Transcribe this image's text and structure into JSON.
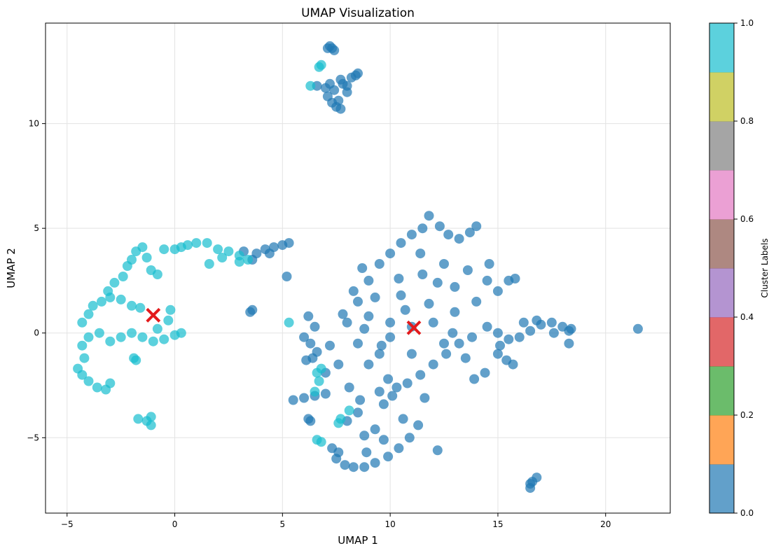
{
  "chart_data": {
    "type": "scatter",
    "title": "UMAP Visualization",
    "xlabel": "UMAP 1",
    "ylabel": "UMAP 2",
    "xlim": [
      -6,
      23
    ],
    "ylim": [
      -8.6,
      14.8
    ],
    "x_ticks": [
      -5,
      0,
      5,
      10,
      15,
      20
    ],
    "y_ticks": [
      -5,
      0,
      5,
      10
    ],
    "x_tick_labels": [
      "−5",
      "0",
      "5",
      "10",
      "15",
      "20"
    ],
    "y_tick_labels": [
      "−5",
      "0",
      "5",
      "10"
    ],
    "grid": true,
    "colorbar": {
      "label": "Cluster Labels",
      "range": [
        0,
        1
      ],
      "ticks": [
        0.0,
        0.2,
        0.4,
        0.6,
        0.8,
        1.0
      ],
      "tick_labels": [
        "0.0",
        "0.2",
        "0.4",
        "0.6",
        "0.8",
        "1.0"
      ],
      "colors": [
        "#1f77b4",
        "#ff7f0e",
        "#2ca02c",
        "#d62728",
        "#9467bd",
        "#8c564b",
        "#e377c2",
        "#7f7f7f",
        "#bcbd22",
        "#17becf"
      ]
    },
    "series": [
      {
        "cluster_label": 0,
        "color": "#1f77b4",
        "points": [
          [
            7.2,
            13.7
          ],
          [
            7.3,
            13.6
          ],
          [
            7.4,
            13.5
          ],
          [
            7.1,
            13.6
          ],
          [
            6.6,
            11.8
          ],
          [
            7.0,
            11.7
          ],
          [
            7.4,
            11.6
          ],
          [
            7.8,
            11.9
          ],
          [
            8.2,
            12.2
          ],
          [
            8.5,
            12.4
          ],
          [
            7.6,
            11.1
          ],
          [
            7.3,
            11.0
          ],
          [
            7.2,
            11.9
          ],
          [
            7.7,
            12.1
          ],
          [
            8.0,
            11.8
          ],
          [
            7.5,
            10.8
          ],
          [
            7.7,
            10.7
          ],
          [
            8.4,
            12.3
          ],
          [
            8.0,
            11.5
          ],
          [
            7.1,
            11.3
          ],
          [
            3.5,
            1.0
          ],
          [
            3.6,
            1.1
          ],
          [
            3.8,
            3.8
          ],
          [
            4.2,
            4.0
          ],
          [
            4.6,
            4.1
          ],
          [
            5.0,
            4.2
          ],
          [
            5.3,
            4.3
          ],
          [
            3.6,
            3.5
          ],
          [
            3.2,
            3.9
          ],
          [
            4.4,
            3.8
          ],
          [
            5.2,
            2.7
          ],
          [
            6.2,
            0.8
          ],
          [
            6.5,
            0.3
          ],
          [
            6.0,
            -0.2
          ],
          [
            6.3,
            -0.5
          ],
          [
            6.6,
            -0.9
          ],
          [
            6.1,
            -1.3
          ],
          [
            6.4,
            -1.2
          ],
          [
            5.5,
            -3.2
          ],
          [
            6.0,
            -3.1
          ],
          [
            6.5,
            -3.0
          ],
          [
            7.0,
            -2.9
          ],
          [
            6.2,
            -4.1
          ],
          [
            6.3,
            -4.2
          ],
          [
            7.3,
            -5.5
          ],
          [
            7.6,
            -5.7
          ],
          [
            7.5,
            -6.0
          ],
          [
            7.9,
            -6.3
          ],
          [
            8.3,
            -6.4
          ],
          [
            8.8,
            -6.4
          ],
          [
            9.3,
            -6.2
          ],
          [
            9.9,
            -5.9
          ],
          [
            10.4,
            -5.5
          ],
          [
            10.9,
            -5.0
          ],
          [
            11.3,
            -4.4
          ],
          [
            8.0,
            -4.2
          ],
          [
            8.5,
            -3.8
          ],
          [
            8.8,
            -4.9
          ],
          [
            9.3,
            -4.6
          ],
          [
            9.7,
            -3.4
          ],
          [
            10.1,
            -3.0
          ],
          [
            8.0,
            0.5
          ],
          [
            8.5,
            1.5
          ],
          [
            9.0,
            2.5
          ],
          [
            9.5,
            3.3
          ],
          [
            10.0,
            3.8
          ],
          [
            10.5,
            4.3
          ],
          [
            11.0,
            4.7
          ],
          [
            11.5,
            5.0
          ],
          [
            11.8,
            5.6
          ],
          [
            12.3,
            5.1
          ],
          [
            12.7,
            4.7
          ],
          [
            13.2,
            4.5
          ],
          [
            13.7,
            4.8
          ],
          [
            14.0,
            5.1
          ],
          [
            8.5,
            -0.5
          ],
          [
            9.0,
            -1.5
          ],
          [
            9.5,
            -1.0
          ],
          [
            9.9,
            -2.2
          ],
          [
            10.3,
            -2.6
          ],
          [
            10.8,
            -2.4
          ],
          [
            11.4,
            -2.0
          ],
          [
            12.0,
            -1.5
          ],
          [
            12.6,
            -1.0
          ],
          [
            13.2,
            -0.5
          ],
          [
            13.8,
            -0.2
          ],
          [
            9.0,
            0.8
          ],
          [
            10.0,
            0.5
          ],
          [
            11.0,
            0.3
          ],
          [
            12.0,
            0.5
          ],
          [
            13.0,
            1.0
          ],
          [
            14.0,
            1.5
          ],
          [
            14.5,
            2.5
          ],
          [
            15.0,
            2.0
          ],
          [
            15.5,
            2.5
          ],
          [
            15.8,
            2.6
          ],
          [
            10.5,
            1.8
          ],
          [
            11.5,
            2.8
          ],
          [
            12.5,
            3.3
          ],
          [
            13.0,
            2.2
          ],
          [
            12.5,
            -0.5
          ],
          [
            11.0,
            -1.0
          ],
          [
            10.0,
            -0.2
          ],
          [
            9.3,
            1.7
          ],
          [
            8.7,
            3.1
          ],
          [
            8.3,
            2.0
          ],
          [
            14.5,
            0.3
          ],
          [
            15.0,
            0.0
          ],
          [
            15.5,
            -0.3
          ],
          [
            16.0,
            -0.2
          ],
          [
            16.5,
            0.1
          ],
          [
            17.0,
            0.4
          ],
          [
            17.5,
            0.5
          ],
          [
            18.0,
            0.3
          ],
          [
            18.3,
            0.1
          ],
          [
            18.3,
            -0.5
          ],
          [
            18.4,
            0.2
          ],
          [
            16.8,
            0.6
          ],
          [
            17.6,
            0.0
          ],
          [
            15.0,
            -1.0
          ],
          [
            15.4,
            -1.3
          ],
          [
            15.7,
            -1.5
          ],
          [
            14.4,
            -1.9
          ],
          [
            13.9,
            -2.2
          ],
          [
            12.2,
            -5.6
          ],
          [
            16.5,
            -7.2
          ],
          [
            16.6,
            -7.1
          ],
          [
            16.8,
            -6.9
          ],
          [
            16.5,
            -7.4
          ],
          [
            21.5,
            0.2
          ],
          [
            8.8,
            0.2
          ],
          [
            9.6,
            -0.6
          ],
          [
            10.7,
            1.1
          ],
          [
            11.8,
            1.4
          ],
          [
            12.9,
            0.0
          ],
          [
            13.5,
            -1.2
          ],
          [
            11.6,
            -3.1
          ],
          [
            10.6,
            -4.1
          ],
          [
            9.7,
            -5.1
          ],
          [
            8.9,
            -5.7
          ],
          [
            9.5,
            -2.8
          ],
          [
            7.6,
            -1.5
          ],
          [
            7.0,
            -1.9
          ],
          [
            7.2,
            -0.6
          ],
          [
            7.8,
            0.9
          ],
          [
            8.1,
            -2.6
          ],
          [
            8.6,
            -3.2
          ],
          [
            10.4,
            2.6
          ],
          [
            11.4,
            3.8
          ],
          [
            12.2,
            2.4
          ],
          [
            13.6,
            3.0
          ],
          [
            14.6,
            3.3
          ],
          [
            15.1,
            -0.6
          ],
          [
            16.2,
            0.5
          ]
        ]
      },
      {
        "cluster_label": 1,
        "color": "#17becf",
        "points": [
          [
            6.7,
            12.7
          ],
          [
            6.8,
            12.8
          ],
          [
            6.3,
            11.8
          ],
          [
            -4.5,
            -1.7
          ],
          [
            -4.3,
            -2.0
          ],
          [
            -4.0,
            -2.3
          ],
          [
            -3.6,
            -2.6
          ],
          [
            -3.2,
            -2.7
          ],
          [
            -3.0,
            -2.4
          ],
          [
            -4.2,
            -1.2
          ],
          [
            -4.3,
            -0.6
          ],
          [
            -4.0,
            -0.2
          ],
          [
            -4.3,
            0.5
          ],
          [
            -4.0,
            0.9
          ],
          [
            -3.8,
            1.3
          ],
          [
            -3.4,
            1.5
          ],
          [
            -3.0,
            1.7
          ],
          [
            -2.5,
            1.6
          ],
          [
            -2.0,
            1.3
          ],
          [
            -1.6,
            1.2
          ],
          [
            -3.1,
            2.0
          ],
          [
            -2.8,
            2.4
          ],
          [
            -2.4,
            2.7
          ],
          [
            -2.2,
            3.2
          ],
          [
            -2.0,
            3.5
          ],
          [
            -1.8,
            3.9
          ],
          [
            -1.5,
            4.1
          ],
          [
            -1.3,
            3.6
          ],
          [
            -1.1,
            3.0
          ],
          [
            -0.8,
            2.8
          ],
          [
            -3.5,
            0.0
          ],
          [
            -3.0,
            -0.4
          ],
          [
            -2.5,
            -0.2
          ],
          [
            -2.0,
            0.0
          ],
          [
            -1.5,
            -0.2
          ],
          [
            -1.0,
            -0.4
          ],
          [
            -0.5,
            -0.3
          ],
          [
            0.0,
            -0.1
          ],
          [
            0.3,
            0.0
          ],
          [
            -0.3,
            0.6
          ],
          [
            -0.8,
            0.2
          ],
          [
            -1.8,
            -1.3
          ],
          [
            -1.9,
            -1.2
          ],
          [
            -1.7,
            -4.1
          ],
          [
            -1.3,
            -4.2
          ],
          [
            -1.1,
            -4.4
          ],
          [
            -1.1,
            -4.0
          ],
          [
            0.0,
            4.0
          ],
          [
            0.3,
            4.1
          ],
          [
            0.6,
            4.2
          ],
          [
            1.0,
            4.3
          ],
          [
            1.5,
            4.3
          ],
          [
            2.0,
            4.0
          ],
          [
            2.5,
            3.9
          ],
          [
            3.0,
            3.7
          ],
          [
            3.4,
            3.5
          ],
          [
            1.6,
            3.3
          ],
          [
            2.2,
            3.6
          ],
          [
            -0.5,
            4.0
          ],
          [
            3.0,
            3.4
          ],
          [
            -0.2,
            1.1
          ],
          [
            5.3,
            0.5
          ],
          [
            6.6,
            -1.9
          ],
          [
            6.8,
            -1.7
          ],
          [
            6.7,
            -2.3
          ],
          [
            6.5,
            -2.8
          ],
          [
            6.6,
            -5.1
          ],
          [
            6.8,
            -5.2
          ],
          [
            7.7,
            -4.1
          ],
          [
            7.6,
            -4.3
          ],
          [
            8.1,
            -3.7
          ]
        ]
      }
    ],
    "centroids": [
      [
        -1.0,
        0.85
      ],
      [
        11.1,
        0.25
      ]
    ]
  }
}
